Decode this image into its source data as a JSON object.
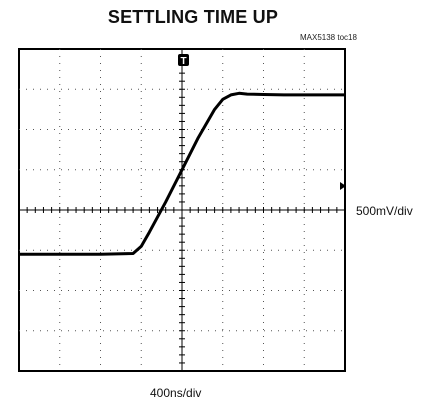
{
  "chart_data": {
    "type": "line",
    "title": "SETTLING TIME UP",
    "figure_id": "MAX5138 toc18",
    "vertical_scale_label": "500mV/div",
    "horizontal_scale_label": "400ns/div",
    "trigger_marker": "T",
    "grid": true,
    "x_units": "divisions",
    "y_units": "divisions",
    "xlim": [
      0,
      8
    ],
    "ylim": [
      0,
      8
    ],
    "series": [
      {
        "x": [
          0,
          1,
          2,
          2.8,
          3.0,
          3.2,
          3.6,
          4.0,
          4.4,
          4.8,
          5.0,
          5.2,
          5.4,
          5.6,
          6.0,
          6.5,
          7.0,
          8.0
        ],
        "y": [
          2.9,
          2.9,
          2.9,
          2.92,
          3.1,
          3.45,
          4.2,
          5.0,
          5.8,
          6.5,
          6.75,
          6.86,
          6.9,
          6.88,
          6.87,
          6.86,
          6.86,
          6.86
        ]
      }
    ]
  }
}
